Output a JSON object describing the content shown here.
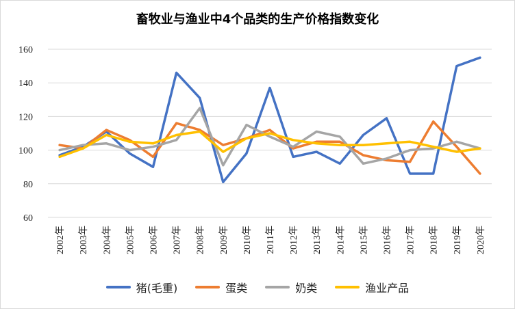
{
  "chart_data": {
    "type": "line",
    "title": "畜牧业与渔业中4个品类的生产价格指数变化",
    "xlabel": "",
    "ylabel": "",
    "ylim": [
      60,
      160
    ],
    "yticks": [
      60,
      80,
      100,
      120,
      140,
      160
    ],
    "grid": true,
    "legend": "bottom",
    "categories": [
      "2002年",
      "2003年",
      "2004年",
      "2005年",
      "2006年",
      "2007年",
      "2008年",
      "2009年",
      "2010年",
      "2011年",
      "2012年",
      "2013年",
      "2014年",
      "2015年",
      "2016年",
      "2017年",
      "2018年",
      "2019年",
      "2020年"
    ],
    "series": [
      {
        "name": "猪(毛重)",
        "color": "#4472C4",
        "values": [
          97,
          102,
          111,
          98,
          90,
          146,
          131,
          81,
          98,
          137,
          96,
          99,
          92,
          109,
          119,
          86,
          86,
          150,
          155
        ]
      },
      {
        "name": "蛋类",
        "color": "#ED7D31",
        "values": [
          103,
          101,
          112,
          106,
          96,
          116,
          112,
          103,
          107,
          112,
          101,
          105,
          105,
          97,
          94,
          93,
          117,
          102,
          86
        ]
      },
      {
        "name": "奶类",
        "color": "#A5A5A5",
        "values": [
          100,
          103,
          104,
          100,
          102,
          106,
          125,
          91,
          115,
          108,
          102,
          111,
          108,
          92,
          95,
          100,
          101,
          105,
          101
        ]
      },
      {
        "name": "渔业产品",
        "color": "#FFC000",
        "values": [
          96,
          101,
          109,
          105,
          104,
          109,
          111,
          99,
          107,
          110,
          106,
          104,
          103,
          103,
          104,
          105,
          102,
          99,
          101
        ]
      }
    ]
  }
}
